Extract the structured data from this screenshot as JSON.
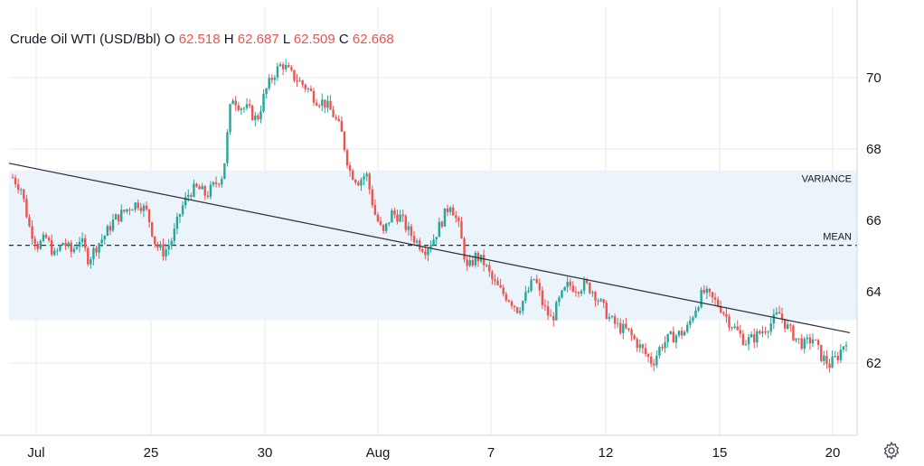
{
  "legend": {
    "symbol": "Crude Oil WTI (USD/Bbl)",
    "o_label": "O",
    "o_value": "62.518",
    "h_label": "H",
    "h_value": "62.687",
    "l_label": "L",
    "l_value": "62.509",
    "c_label": "C",
    "c_value": "62.668"
  },
  "settings_icon": "gear-icon",
  "colors": {
    "up": "#26a69a",
    "down": "#ef5350",
    "band": "#ecf4fb",
    "grid": "#e6e8ec",
    "trend": "#2a2e39"
  },
  "chart_data": {
    "type": "candlestick",
    "x_ticks": [
      "Jul",
      "25",
      "30",
      "Aug",
      "7",
      "12",
      "15",
      "20"
    ],
    "y_ticks": [
      "62",
      "64",
      "66",
      "68",
      "70"
    ],
    "ylim": [
      60,
      72
    ],
    "variance_band": {
      "label": "VARIANCE",
      "low": 63.2,
      "high": 67.4
    },
    "mean_line": {
      "label": "MEAN",
      "value": 65.3
    },
    "trend_line": {
      "start": 67.6,
      "end": 62.85
    },
    "close_path": [
      67.2,
      66.9,
      65.8,
      65.3,
      65.5,
      65.0,
      65.4,
      65.1,
      65.5,
      64.9,
      65.3,
      65.6,
      66.0,
      66.2,
      66.4,
      66.5,
      66.2,
      65.3,
      65.1,
      65.5,
      66.3,
      66.8,
      66.9,
      66.7,
      67.0,
      67.3,
      69.5,
      69.2,
      69.1,
      68.8,
      69.6,
      70.1,
      70.4,
      70.1,
      69.9,
      69.7,
      69.4,
      69.3,
      69.0,
      68.5,
      67.4,
      67.1,
      67.3,
      66.2,
      65.6,
      66.2,
      66.1,
      65.7,
      65.4,
      65.2,
      65.5,
      66.0,
      66.5,
      65.8,
      64.6,
      65.0,
      64.8,
      64.3,
      64.0,
      63.8,
      63.5,
      63.9,
      64.4,
      63.6,
      63.2,
      63.8,
      64.2,
      64.1,
      64.2,
      64.0,
      63.6,
      63.2,
      63.0,
      62.9,
      62.6,
      62.3,
      62.0,
      62.5,
      62.7,
      62.8,
      62.9,
      63.5,
      64.0,
      63.8,
      63.6,
      63.2,
      62.9,
      62.6,
      62.7,
      62.9,
      63.1,
      63.4,
      63.0,
      62.7,
      62.5,
      62.7,
      62.2,
      61.95,
      62.2,
      62.67
    ]
  }
}
